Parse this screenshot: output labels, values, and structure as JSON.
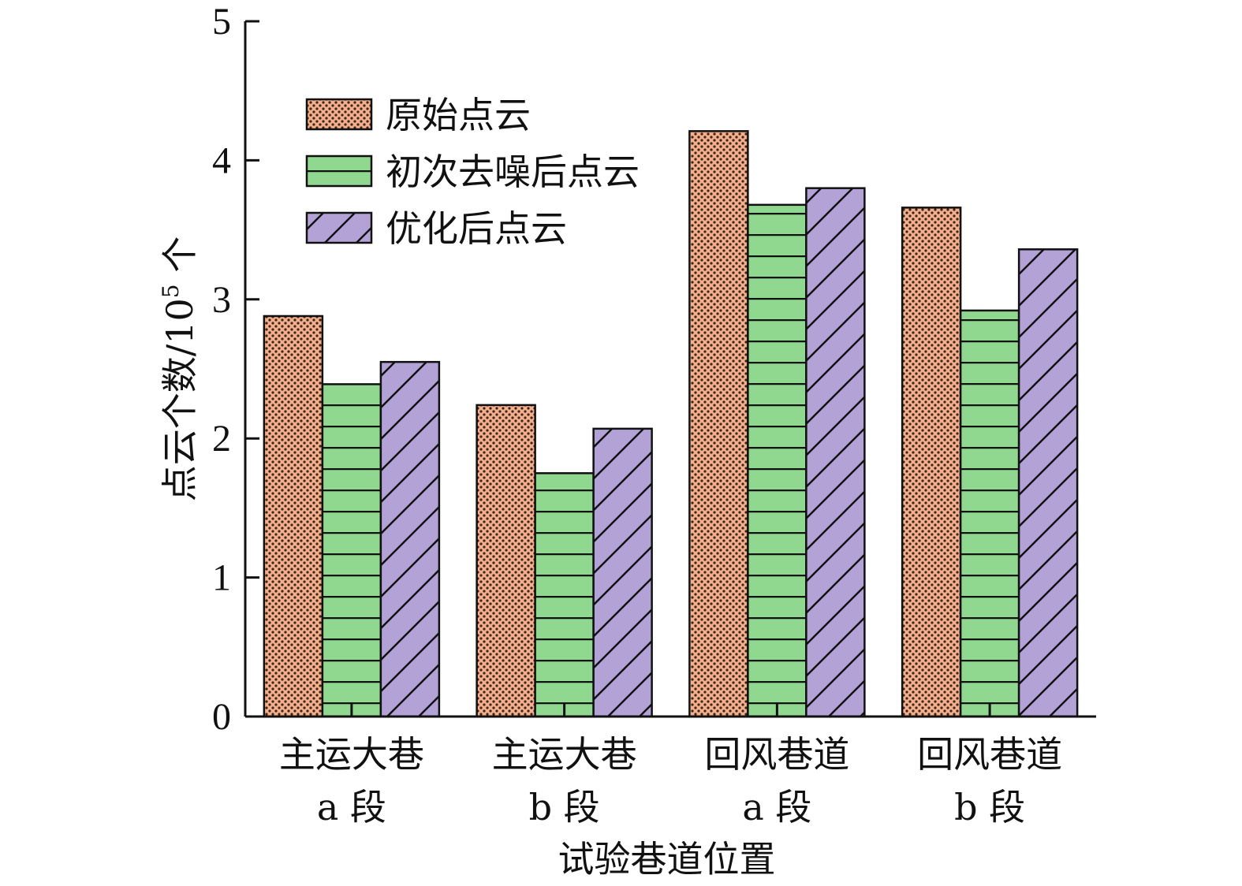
{
  "chart_data": {
    "type": "bar",
    "xlabel": "试验巷道位置",
    "ylabel_main": "点云个数/10",
    "ylabel_sup": "5",
    "ylabel_unit": " 个",
    "ylim": [
      0,
      5
    ],
    "yticks": [
      "0",
      "1",
      "2",
      "3",
      "4",
      "5"
    ],
    "categories": [
      {
        "line1": "主运大巷",
        "line2": "a 段"
      },
      {
        "line1": "主运大巷",
        "line2": "b 段"
      },
      {
        "line1": "回风巷道",
        "line2": "a 段"
      },
      {
        "line1": "回风巷道",
        "line2": "b 段"
      }
    ],
    "series": [
      {
        "name": "原始点云",
        "color": "#f4b08c",
        "pattern": "dots",
        "values": [
          2.88,
          2.24,
          4.21,
          3.66
        ]
      },
      {
        "name": "初次去噪后点云",
        "color": "#90d890",
        "pattern": "horizontal-lines",
        "values": [
          2.39,
          1.75,
          3.68,
          2.92
        ]
      },
      {
        "name": "优化后点云",
        "color": "#b3a2d6",
        "pattern": "diagonal-lines",
        "values": [
          2.55,
          2.07,
          3.8,
          3.36
        ]
      }
    ],
    "legend_position": "top-left",
    "grid": false
  }
}
